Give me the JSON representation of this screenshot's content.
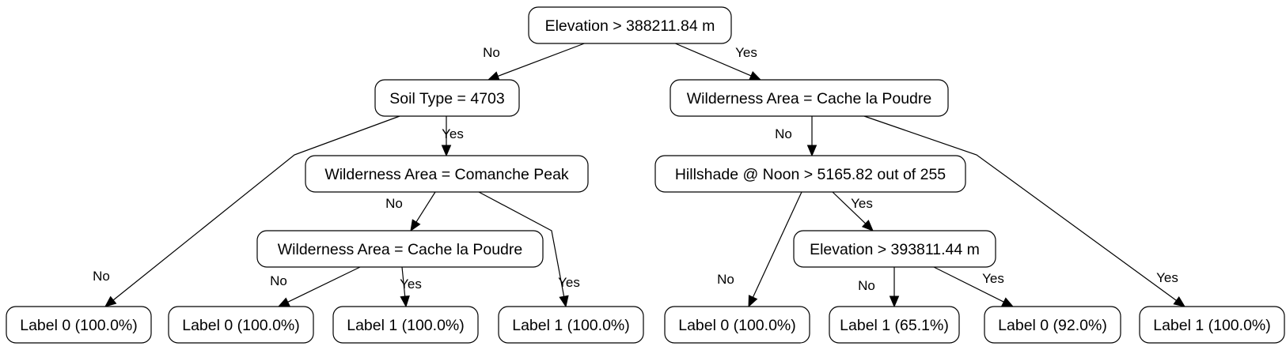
{
  "diagram": {
    "type": "decision-tree",
    "nodes": [
      {
        "id": "n0",
        "label": "Elevation > 388211.84 m"
      },
      {
        "id": "n1",
        "label": "Soil Type = 4703"
      },
      {
        "id": "n2",
        "label": "Wilderness Area = Cache la Poudre"
      },
      {
        "id": "n3",
        "label": "Wilderness Area = Comanche Peak"
      },
      {
        "id": "n4",
        "label": "Wilderness Area = Cache la Poudre"
      },
      {
        "id": "n5",
        "label": "Hillshade @ Noon > 5165.82 out of 255"
      },
      {
        "id": "n6",
        "label": "Elevation > 393811.44 m"
      },
      {
        "id": "l1",
        "label": "Label 0 (100.0%)"
      },
      {
        "id": "l2",
        "label": "Label 0 (100.0%)"
      },
      {
        "id": "l3",
        "label": "Label 1 (100.0%)"
      },
      {
        "id": "l4",
        "label": "Label 1 (100.0%)"
      },
      {
        "id": "l5",
        "label": "Label 0 (100.0%)"
      },
      {
        "id": "l6",
        "label": "Label 1 (65.1%)"
      },
      {
        "id": "l7",
        "label": "Label 0 (92.0%)"
      },
      {
        "id": "l8",
        "label": "Label 1 (100.0%)"
      }
    ],
    "edges": [
      {
        "from": "n0",
        "to": "n1",
        "label": "No"
      },
      {
        "from": "n0",
        "to": "n2",
        "label": "Yes"
      },
      {
        "from": "n1",
        "to": "l1",
        "label": "No"
      },
      {
        "from": "n1",
        "to": "n3",
        "label": "Yes"
      },
      {
        "from": "n3",
        "to": "n4",
        "label": "No"
      },
      {
        "from": "n3",
        "to": "l4",
        "label": "Yes"
      },
      {
        "from": "n4",
        "to": "l2",
        "label": "No"
      },
      {
        "from": "n4",
        "to": "l3",
        "label": "Yes"
      },
      {
        "from": "n2",
        "to": "n5",
        "label": "No"
      },
      {
        "from": "n2",
        "to": "l8",
        "label": "Yes"
      },
      {
        "from": "n5",
        "to": "l5",
        "label": "No"
      },
      {
        "from": "n5",
        "to": "n6",
        "label": "Yes"
      },
      {
        "from": "n6",
        "to": "l6",
        "label": "No"
      },
      {
        "from": "n6",
        "to": "l7",
        "label": "Yes"
      }
    ]
  }
}
